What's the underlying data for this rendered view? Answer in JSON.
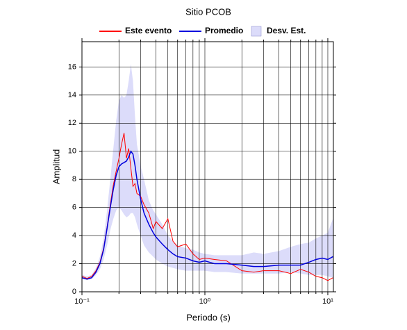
{
  "chart_data": {
    "type": "line",
    "title": "Sitio PCOB",
    "x_label": "Periodo (s)",
    "y_label": "Amplitud",
    "x_log": true,
    "grid": true,
    "legend": "top",
    "x": [
      0.1,
      0.11,
      0.12,
      0.13,
      0.14,
      0.15,
      0.16,
      0.17,
      0.18,
      0.19,
      0.2,
      0.21,
      0.22,
      0.23,
      0.24,
      0.25,
      0.26,
      0.27,
      0.28,
      0.3,
      0.32,
      0.35,
      0.38,
      0.4,
      0.45,
      0.5,
      0.55,
      0.6,
      0.7,
      0.8,
      0.9,
      1,
      1.2,
      1.5,
      2,
      2.5,
      3,
      4,
      5,
      6,
      7,
      8,
      9,
      10,
      11
    ],
    "series": [
      {
        "name": "Este evento",
        "color": "#ff0000",
        "values": [
          1.1,
          0.95,
          1.1,
          1.5,
          2.1,
          3.1,
          4.6,
          6.2,
          7.6,
          8.6,
          9.5,
          10.5,
          11.3,
          9.5,
          10.2,
          8.8,
          7.5,
          7.7,
          7.0,
          6.8,
          6.2,
          5.6,
          4.5,
          5.0,
          4.5,
          5.2,
          3.6,
          3.2,
          3.4,
          2.7,
          2.3,
          2.4,
          2.3,
          2.2,
          1.5,
          1.4,
          1.5,
          1.5,
          1.3,
          1.6,
          1.4,
          1.1,
          1.0,
          0.8,
          1.0
        ]
      },
      {
        "name": "Promedio",
        "color": "#0000dd",
        "values": [
          1.0,
          0.9,
          1.0,
          1.4,
          2.0,
          3.0,
          4.5,
          6.0,
          7.3,
          8.3,
          8.9,
          9.1,
          9.2,
          9.3,
          9.6,
          10.0,
          9.8,
          9.0,
          8.0,
          6.6,
          5.6,
          4.8,
          4.2,
          3.9,
          3.4,
          3.0,
          2.7,
          2.5,
          2.4,
          2.2,
          2.1,
          2.2,
          2.0,
          2.0,
          1.9,
          1.8,
          1.8,
          1.9,
          1.9,
          1.9,
          2.1,
          2.3,
          2.4,
          2.3,
          2.5
        ]
      },
      {
        "name": "Desv. Est.",
        "color": "#dcdcfa",
        "lower": [
          0.9,
          0.85,
          0.9,
          1.2,
          1.6,
          2.3,
          3.3,
          4.4,
          5.2,
          5.8,
          6.0,
          5.8,
          5.5,
          5.3,
          5.4,
          5.6,
          5.6,
          5.3,
          4.8,
          4.0,
          3.3,
          2.8,
          2.5,
          2.3,
          2.0,
          1.8,
          1.7,
          1.6,
          1.5,
          1.5,
          1.5,
          1.5,
          1.4,
          1.4,
          1.3,
          1.3,
          1.3,
          1.3,
          1.4,
          1.3,
          1.2,
          1.2,
          1.2,
          1.1,
          1.0
        ],
        "upper": [
          1.2,
          1.1,
          1.2,
          1.7,
          2.5,
          3.8,
          5.8,
          8.0,
          10.2,
          12.2,
          13.6,
          14.0,
          13.8,
          14.0,
          15.0,
          16.2,
          15.0,
          12.5,
          10.5,
          9.0,
          8.0,
          6.5,
          5.8,
          5.5,
          4.8,
          4.0,
          3.6,
          3.3,
          3.1,
          3.0,
          2.8,
          2.7,
          2.6,
          2.6,
          2.6,
          2.8,
          2.7,
          2.9,
          3.2,
          3.4,
          3.5,
          3.8,
          4.0,
          4.2,
          5.2
        ]
      }
    ],
    "xlim": [
      0.1,
      11.1
    ],
    "xticks": [
      {
        "value": 0.1,
        "label": "10⁻¹"
      },
      {
        "value": 1,
        "label": "10⁰"
      },
      {
        "value": 10,
        "label": "10¹"
      }
    ],
    "xgrid": [
      0.2,
      0.3,
      0.4,
      0.5,
      0.6,
      0.7,
      0.8,
      0.9,
      2,
      3,
      4,
      5,
      6,
      7,
      8,
      9
    ],
    "ylim": [
      0,
      17.8
    ],
    "yticks": [
      0,
      2,
      4,
      6,
      8,
      10,
      12,
      14,
      16
    ]
  }
}
